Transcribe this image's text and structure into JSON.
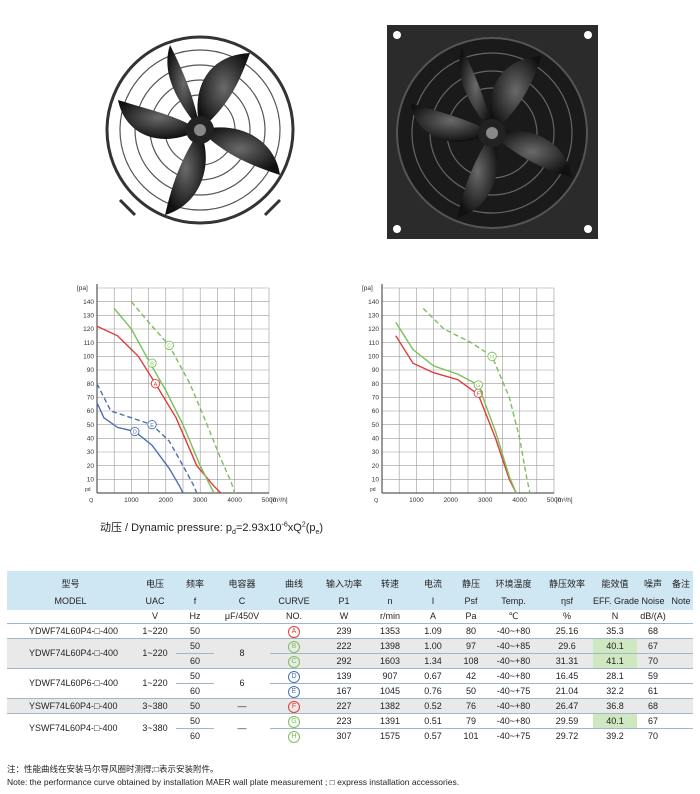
{
  "chart_common": {
    "y_unit": "[pa]",
    "x_unit": "[m³/h]",
    "y_ticks": [
      "10",
      "20",
      "30",
      "40",
      "50",
      "60",
      "70",
      "80",
      "90",
      "100",
      "110",
      "120",
      "130",
      "140"
    ],
    "x_ticks": [
      "1000",
      "2000",
      "3000",
      "4000",
      "5000"
    ],
    "y_axis_marker": "pd",
    "x_axis_marker": "Q"
  },
  "chart_data": [
    {
      "type": "line",
      "xlabel": "[m³/h]",
      "ylabel": "[pa]",
      "xlim": [
        0,
        5000
      ],
      "ylim": [
        0,
        150
      ],
      "series": [
        {
          "name": "A",
          "color": "#e03b3b",
          "dash": false,
          "label_at": [
            1700,
            80
          ],
          "x": [
            0,
            600,
            1200,
            1700,
            2300,
            2900,
            3400,
            3600
          ],
          "y": [
            122,
            115,
            100,
            80,
            55,
            20,
            5,
            0
          ]
        },
        {
          "name": "B",
          "color": "#7bbf5a",
          "dash": false,
          "label_at": [
            1600,
            95
          ],
          "x": [
            500,
            1000,
            1500,
            2000,
            2500,
            3000,
            3300,
            3400
          ],
          "y": [
            135,
            120,
            97,
            75,
            50,
            20,
            5,
            0
          ]
        },
        {
          "name": "C",
          "color": "#7bbf5a",
          "dash": true,
          "label_at": [
            2100,
            108
          ],
          "x": [
            1000,
            1500,
            2100,
            2700,
            3200,
            3600,
            3900,
            4000
          ],
          "y": [
            140,
            125,
            108,
            80,
            50,
            25,
            8,
            0
          ]
        },
        {
          "name": "D",
          "color": "#4d6fb3",
          "dash": false,
          "label_at": [
            1100,
            45
          ],
          "x": [
            0,
            200,
            600,
            1100,
            1600,
            2100,
            2400,
            2500
          ],
          "y": [
            66,
            55,
            48,
            45,
            35,
            18,
            5,
            0
          ]
        },
        {
          "name": "E",
          "color": "#4d6fb3",
          "dash": true,
          "label_at": [
            1600,
            50
          ],
          "x": [
            0,
            400,
            1000,
            1600,
            2100,
            2500,
            2800,
            2900
          ],
          "y": [
            80,
            60,
            55,
            50,
            38,
            20,
            6,
            0
          ]
        }
      ]
    },
    {
      "type": "line",
      "xlabel": "[m³/h]",
      "ylabel": "[pa]",
      "xlim": [
        0,
        5000
      ],
      "ylim": [
        0,
        150
      ],
      "series": [
        {
          "name": "F",
          "color": "#e03b3b",
          "dash": false,
          "label_at": [
            2800,
            73
          ],
          "x": [
            400,
            900,
            1500,
            2200,
            2800,
            3300,
            3700,
            3900
          ],
          "y": [
            115,
            95,
            88,
            83,
            72,
            40,
            10,
            0
          ]
        },
        {
          "name": "G",
          "color": "#7bbf5a",
          "dash": false,
          "label_at": [
            2800,
            79
          ],
          "x": [
            400,
            900,
            1500,
            2200,
            2800,
            3300,
            3700,
            3900
          ],
          "y": [
            125,
            105,
            93,
            87,
            79,
            45,
            12,
            0
          ]
        },
        {
          "name": "H",
          "color": "#7bbf5a",
          "dash": true,
          "label_at": [
            3200,
            100
          ],
          "x": [
            1200,
            1800,
            2600,
            3200,
            3700,
            4000,
            4200,
            4300
          ],
          "y": [
            135,
            120,
            110,
            100,
            70,
            40,
            12,
            0
          ]
        }
      ]
    }
  ],
  "formula": {
    "prefix": "动压 / Dynamic pressure:  p",
    "sub_d": "d",
    "eq": "=2.93x10",
    "sup_exp": "-6",
    "mid": "xQ",
    "sup_2": "2",
    "rest": "(p",
    "sub_e": "e",
    "close": ")"
  },
  "table": {
    "header_cn": [
      "型号",
      "电压",
      "频率",
      "电容器",
      "曲线",
      "输入功率",
      "转速",
      "电流",
      "静压",
      "环境温度",
      "静压效率",
      "能效值",
      "噪声",
      "备注"
    ],
    "header_en": [
      "MODEL",
      "UAC",
      "f",
      "C",
      "CURVE",
      "P1",
      "n",
      "I",
      "Psf",
      "Temp.",
      "ηsf",
      "EFF. Grade",
      "Noise",
      "Note"
    ],
    "units": [
      "",
      "V",
      "Hz",
      "μF/450V",
      "NO.",
      "W",
      "r/min",
      "A",
      "Pa",
      "℃",
      "%",
      "N",
      "dB/(A)",
      ""
    ],
    "groups": [
      {
        "model": "YDWF74L60P4-□-400",
        "uac": "1~220",
        "cap": "",
        "shaded": false,
        "rows": [
          {
            "f": "50",
            "curve": "A",
            "color": "#e03b3b",
            "p1": "239",
            "n": "1353",
            "i": "1.09",
            "psf": "80",
            "temp": "-40~+80",
            "eff": "25.16",
            "grade": "35.3",
            "grade_green": false,
            "noise": "68"
          }
        ]
      },
      {
        "model": "YDWF74L60P4-□-400",
        "uac": "1~220",
        "cap": "8",
        "shaded": true,
        "rows": [
          {
            "f": "50",
            "curve": "B",
            "color": "#7bbf5a",
            "p1": "222",
            "n": "1398",
            "i": "1.00",
            "psf": "97",
            "temp": "-40~+85",
            "eff": "29.6",
            "grade": "40.1",
            "grade_green": true,
            "noise": "67"
          },
          {
            "f": "60",
            "curve": "C",
            "color": "#7bbf5a",
            "p1": "292",
            "n": "1603",
            "i": "1.34",
            "psf": "108",
            "temp": "-40~+80",
            "eff": "31.31",
            "grade": "41.1",
            "grade_green": true,
            "noise": "70"
          }
        ]
      },
      {
        "model": "YDWF74L60P6-□-400",
        "uac": "1~220",
        "cap": "6",
        "shaded": false,
        "rows": [
          {
            "f": "50",
            "curve": "D",
            "color": "#4d6fb3",
            "p1": "139",
            "n": "907",
            "i": "0.67",
            "psf": "42",
            "temp": "-40~+80",
            "eff": "16.45",
            "grade": "28.1",
            "grade_green": false,
            "noise": "59"
          },
          {
            "f": "60",
            "curve": "E",
            "color": "#4d6fb3",
            "p1": "167",
            "n": "1045",
            "i": "0.76",
            "psf": "50",
            "temp": "-40~+75",
            "eff": "21.04",
            "grade": "32.2",
            "grade_green": false,
            "noise": "61"
          }
        ]
      },
      {
        "model": "YSWF74L60P4-□-400",
        "uac": "3~380",
        "cap": "—",
        "shaded": true,
        "rows": [
          {
            "f": "50",
            "curve": "F",
            "color": "#e03b3b",
            "p1": "227",
            "n": "1382",
            "i": "0.52",
            "psf": "76",
            "temp": "-40~+80",
            "eff": "26.47",
            "grade": "36.8",
            "grade_green": false,
            "noise": "68"
          }
        ]
      },
      {
        "model": "YSWF74L60P4-□-400",
        "uac": "3~380",
        "cap": "—",
        "shaded": false,
        "rows": [
          {
            "f": "50",
            "curve": "G",
            "color": "#7bbf5a",
            "p1": "223",
            "n": "1391",
            "i": "0.51",
            "psf": "79",
            "temp": "-40~+80",
            "eff": "29.59",
            "grade": "40.1",
            "grade_green": true,
            "noise": "67"
          },
          {
            "f": "60",
            "curve": "H",
            "color": "#7bbf5a",
            "p1": "307",
            "n": "1575",
            "i": "0.57",
            "psf": "101",
            "temp": "-40~+75",
            "eff": "29.72",
            "grade": "39.2",
            "grade_green": false,
            "noise": "70"
          }
        ]
      }
    ]
  },
  "notes": {
    "line1": "注：性能曲线在安装马尔导风圈时测得;□表示安装附件。",
    "line2": "Note: the performance curve obtained by installation MAER wall plate measurement ; □ express installation accessories."
  }
}
